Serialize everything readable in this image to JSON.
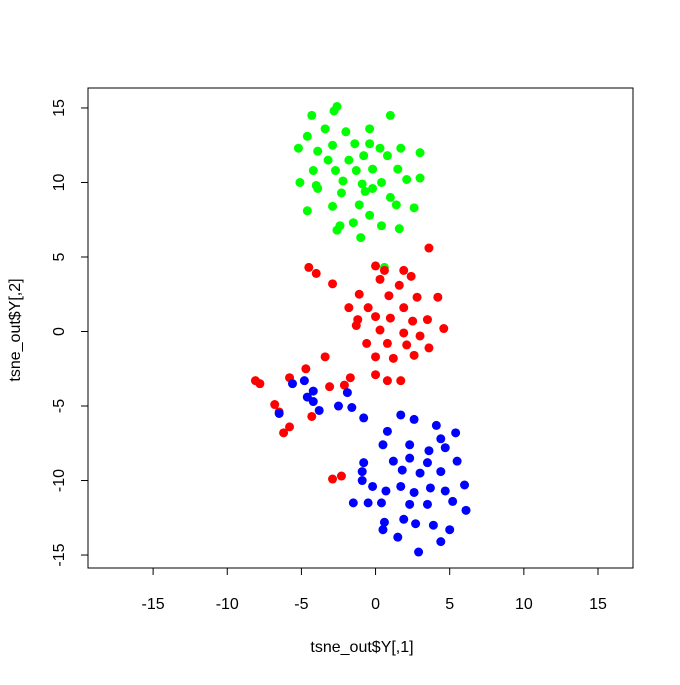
{
  "chart_data": {
    "type": "scatter",
    "xlabel": "tsne_out$Y[,1]",
    "ylabel": "tsne_out$Y[,2]",
    "xlim": [
      -19.39,
      17.36
    ],
    "ylim": [
      -15.87,
      16.34
    ],
    "xticks": [
      -15,
      -10,
      -5,
      0,
      5,
      10,
      15
    ],
    "yticks": [
      -15,
      -10,
      -5,
      0,
      5,
      10,
      15
    ],
    "series": [
      {
        "color": "#00ff00",
        "x": [
          -2.6,
          -4.3,
          1.0,
          -2.8,
          -2.0,
          -4.6,
          -0.4,
          -3.4,
          -5.2,
          -3.9,
          -2.9,
          -1.4,
          -0.4,
          0.3,
          1.7,
          3.0,
          -3.2,
          -1.8,
          -0.8,
          0.8,
          -4.2,
          -2.7,
          -1.3,
          -0.2,
          1.5,
          -5.1,
          -3.9,
          -2.2,
          -0.9,
          0.4,
          2.1,
          3.0,
          -2.3,
          -0.7,
          -0.2,
          1.0,
          -4.6,
          -2.9,
          -1.1,
          -0.4,
          1.4,
          2.6,
          -2.4,
          -1.5,
          0.4,
          1.6,
          -1.0,
          -2.6,
          0.6,
          -4.0
        ],
        "values": [
          15.1,
          14.5,
          14.5,
          14.8,
          13.4,
          13.1,
          13.6,
          13.6,
          12.3,
          12.1,
          12.5,
          12.6,
          12.6,
          12.3,
          12.3,
          12.0,
          11.5,
          11.5,
          11.8,
          11.8,
          10.8,
          10.8,
          10.8,
          10.9,
          10.9,
          10.0,
          9.6,
          10.1,
          9.9,
          10.0,
          10.2,
          10.3,
          9.3,
          9.4,
          9.6,
          9.0,
          8.1,
          8.4,
          8.5,
          7.8,
          8.5,
          8.3,
          7.1,
          7.3,
          7.1,
          6.9,
          6.3,
          6.8,
          4.3,
          9.8
        ]
      },
      {
        "color": "#ff0000",
        "x": [
          3.6,
          0.0,
          -4.5,
          -4.0,
          -2.9,
          0.6,
          1.9,
          2.4,
          0.3,
          1.6,
          -1.1,
          0.9,
          2.8,
          4.2,
          -1.8,
          -0.5,
          1.9,
          -1.2,
          0.0,
          1.0,
          2.5,
          3.5,
          4.6,
          -1.3,
          0.3,
          1.9,
          3.0,
          -0.6,
          0.8,
          2.1,
          3.6,
          0.0,
          1.2,
          2.6,
          -3.4,
          -4.7,
          0.0,
          0.8,
          1.7,
          -1.7,
          -2.1,
          -3.1,
          -5.8,
          -8.1,
          -7.8,
          -6.8,
          -6.5,
          -5.8,
          -6.2,
          -4.3,
          -2.3,
          -2.9
        ],
        "values": [
          5.6,
          4.4,
          4.3,
          3.9,
          3.2,
          4.1,
          4.1,
          3.7,
          3.5,
          3.1,
          2.5,
          2.4,
          2.3,
          2.3,
          1.6,
          1.6,
          1.6,
          0.8,
          1.0,
          0.9,
          0.7,
          0.8,
          0.2,
          0.4,
          0.1,
          -0.1,
          -0.3,
          -0.8,
          -0.8,
          -0.9,
          -1.1,
          -1.7,
          -1.8,
          -1.6,
          -1.7,
          -2.5,
          -2.9,
          -3.3,
          -3.3,
          -3.1,
          -3.6,
          -3.7,
          -3.1,
          -3.3,
          -3.5,
          -4.9,
          -5.4,
          -6.4,
          -6.8,
          -5.7,
          -9.7,
          -9.9
        ]
      },
      {
        "color": "#0000ff",
        "x": [
          -5.6,
          -4.8,
          -4.2,
          -4.6,
          -4.2,
          -3.8,
          -1.9,
          -2.5,
          -1.6,
          -0.8,
          -6.5,
          1.7,
          2.6,
          4.1,
          5.4,
          0.8,
          4.4,
          0.5,
          2.3,
          3.6,
          4.7,
          -0.8,
          1.2,
          2.3,
          3.5,
          5.5,
          -0.9,
          1.8,
          3.0,
          4.4,
          -0.9,
          -0.2,
          0.7,
          1.7,
          2.6,
          3.7,
          4.7,
          6.0,
          -0.5,
          0.4,
          2.3,
          3.5,
          5.2,
          6.1,
          0.6,
          1.9,
          2.7,
          3.9,
          5.0,
          0.5,
          1.5,
          4.4,
          2.9,
          -1.5
        ],
        "values": [
          -3.5,
          -3.3,
          -4.0,
          -4.4,
          -4.7,
          -5.3,
          -4.1,
          -5.0,
          -5.1,
          -5.8,
          -5.5,
          -5.6,
          -5.9,
          -6.3,
          -6.8,
          -6.7,
          -7.2,
          -7.6,
          -7.6,
          -8.0,
          -7.8,
          -8.8,
          -8.7,
          -8.5,
          -8.8,
          -8.7,
          -9.4,
          -9.3,
          -9.5,
          -9.4,
          -10.0,
          -10.4,
          -10.7,
          -10.4,
          -10.8,
          -10.5,
          -10.7,
          -10.3,
          -11.5,
          -11.5,
          -11.6,
          -11.6,
          -11.4,
          -12.0,
          -12.8,
          -12.6,
          -12.9,
          -13.0,
          -13.3,
          -13.3,
          -13.8,
          -14.1,
          -14.8,
          -11.5
        ]
      }
    ]
  }
}
